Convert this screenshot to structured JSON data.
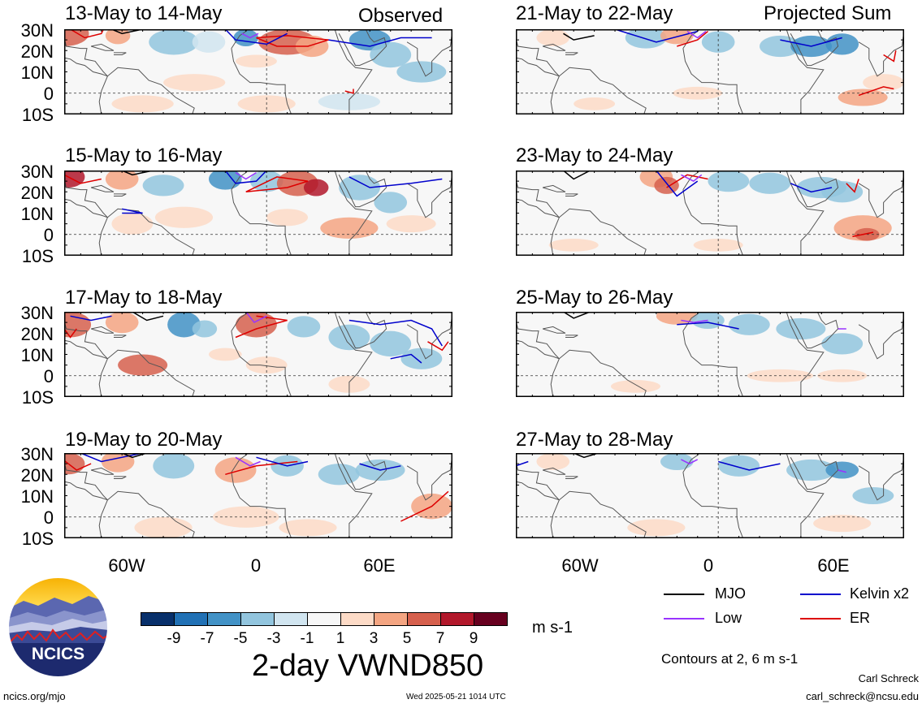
{
  "panels": [
    {
      "title": "13-May to 14-May",
      "column": "observed"
    },
    {
      "title": "15-May to 16-May",
      "column": "observed"
    },
    {
      "title": "17-May to 18-May",
      "column": "observed"
    },
    {
      "title": "19-May to 20-May",
      "column": "observed"
    },
    {
      "title": "21-May to 22-May",
      "column": "projected"
    },
    {
      "title": "23-May to 24-May",
      "column": "projected"
    },
    {
      "title": "25-May to 26-May",
      "column": "projected"
    },
    {
      "title": "27-May to 28-May",
      "column": "projected"
    }
  ],
  "column_labels": {
    "observed": "Observed",
    "projected": "Projected Sum"
  },
  "lat_labels": [
    "30N",
    "20N",
    "10N",
    "0",
    "10S"
  ],
  "lon_labels": [
    "60W",
    "0",
    "60E"
  ],
  "colorbar": {
    "ticks": [
      "-9",
      "-7",
      "-5",
      "-3",
      "-1",
      "1",
      "3",
      "5",
      "7",
      "9"
    ],
    "colors": [
      "#08306b",
      "#2171b5",
      "#4292c6",
      "#92c5de",
      "#d1e5f0",
      "#f7f7f7",
      "#fddbc7",
      "#f4a582",
      "#d6604d",
      "#b2182b",
      "#67001f"
    ],
    "units": "m s-1",
    "variable": "2-day VWND850"
  },
  "legend": {
    "items": [
      {
        "label": "MJO",
        "color": "#000000"
      },
      {
        "label": "Kelvin x2",
        "color": "#0000cc"
      },
      {
        "label": "Low",
        "color": "#9933ff"
      },
      {
        "label": "ER",
        "color": "#dd0000"
      }
    ],
    "contours_note": "Contours at 2, 6 m s-1"
  },
  "logo": {
    "text": "NCICS"
  },
  "footer": {
    "url": "ncics.org/mjo",
    "timestamp": "Wed 2025-05-21 1014 UTC",
    "author": "Carl Schreck",
    "email": "carl_schreck@ncsu.edu"
  }
}
